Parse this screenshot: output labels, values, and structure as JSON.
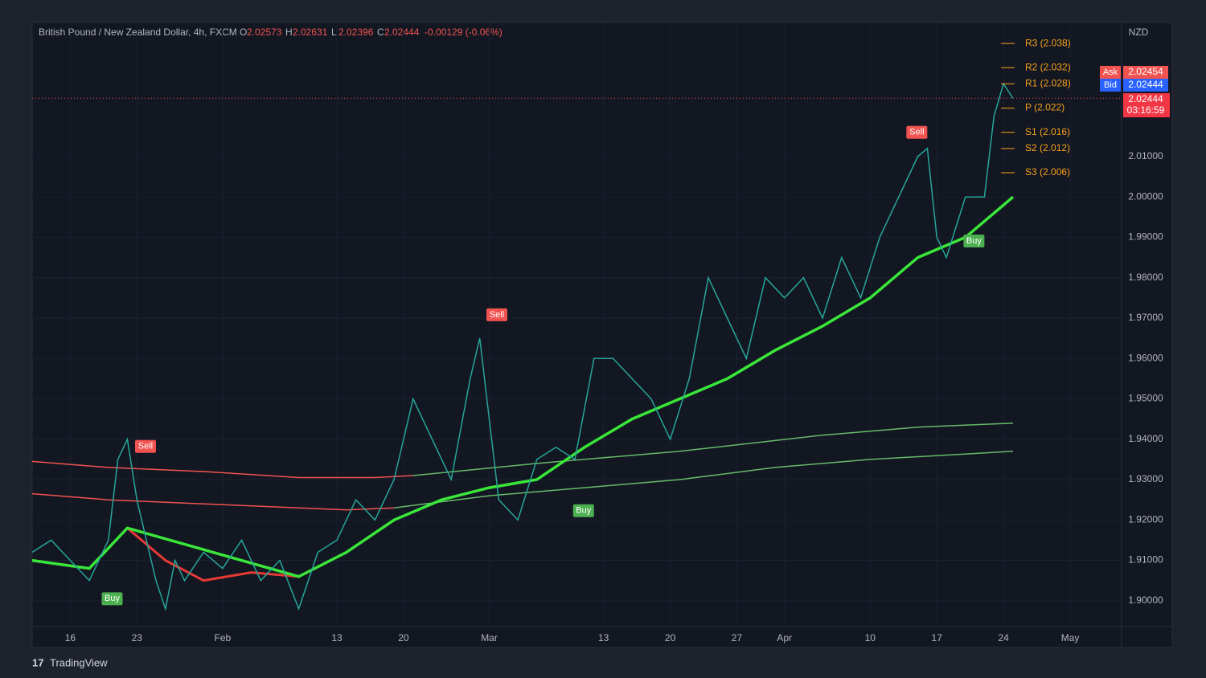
{
  "chart_data": {
    "type": "line",
    "title": "British Pound / New Zealand Dollar, 4h, FXCM",
    "ohlc": [
      {
        "label": "O",
        "value": 2.02573
      },
      {
        "label": "H",
        "value": 2.02631
      },
      {
        "label": "L",
        "value": 2.02396
      },
      {
        "label": "C",
        "value": 2.02444
      }
    ],
    "change": "-0.00129 (-0.06%)",
    "currency": "NZD",
    "ask": {
      "label": "Ask",
      "value": 2.02454
    },
    "bid": {
      "label": "Bid",
      "value": 2.02444
    },
    "last": {
      "value": 2.02444,
      "countdown": "03:16:59"
    },
    "brand": "TradingView",
    "xlim": [
      12,
      126.4
    ],
    "ylim": [
      1.8936,
      2.0432
    ],
    "xticks": [
      {
        "value": 16,
        "label": "16"
      },
      {
        "value": 23,
        "label": "23"
      },
      {
        "value": 32,
        "label": "Feb"
      },
      {
        "value": 44,
        "label": "13"
      },
      {
        "value": 51,
        "label": "20"
      },
      {
        "value": 60,
        "label": "Mar"
      },
      {
        "value": 72,
        "label": "13"
      },
      {
        "value": 79,
        "label": "20"
      },
      {
        "value": 86,
        "label": "27"
      },
      {
        "value": 91,
        "label": "Apr"
      },
      {
        "value": 100,
        "label": "10"
      },
      {
        "value": 107,
        "label": "17"
      },
      {
        "value": 114,
        "label": "24"
      },
      {
        "value": 121,
        "label": "May"
      }
    ],
    "yticks": [
      {
        "value": 1.9,
        "label": "1.90000"
      },
      {
        "value": 1.91,
        "label": "1.91000"
      },
      {
        "value": 1.92,
        "label": "1.92000"
      },
      {
        "value": 1.93,
        "label": "1.93000"
      },
      {
        "value": 1.94,
        "label": "1.94000"
      },
      {
        "value": 1.95,
        "label": "1.95000"
      },
      {
        "value": 1.96,
        "label": "1.96000"
      },
      {
        "value": 1.97,
        "label": "1.97000"
      },
      {
        "value": 1.98,
        "label": "1.98000"
      },
      {
        "value": 1.99,
        "label": "1.99000"
      },
      {
        "value": 2.0,
        "label": "2.00000"
      },
      {
        "value": 2.01,
        "label": "2.01000"
      }
    ],
    "series": [
      {
        "color": "#26a69a",
        "x": [
          12,
          14,
          16,
          18,
          20,
          21,
          22,
          23,
          24,
          25,
          26,
          27,
          28,
          30,
          32,
          34,
          36,
          38,
          40,
          42,
          44,
          46,
          48,
          50,
          52,
          54,
          56,
          58,
          59,
          60,
          61,
          63,
          65,
          67,
          69,
          71,
          73,
          75,
          77,
          79,
          81,
          83,
          85,
          87,
          89,
          91,
          93,
          95,
          97,
          99,
          101,
          103,
          105,
          106,
          107,
          108,
          110,
          112,
          113,
          114,
          115
        ],
        "values": [
          1.912,
          1.915,
          1.91,
          1.905,
          1.915,
          1.935,
          1.94,
          1.925,
          1.915,
          1.905,
          1.898,
          1.91,
          1.905,
          1.912,
          1.908,
          1.915,
          1.905,
          1.91,
          1.898,
          1.912,
          1.915,
          1.925,
          1.92,
          1.93,
          1.95,
          1.94,
          1.93,
          1.955,
          1.965,
          1.945,
          1.925,
          1.92,
          1.935,
          1.938,
          1.935,
          1.96,
          1.96,
          1.955,
          1.95,
          1.94,
          1.955,
          1.98,
          1.97,
          1.96,
          1.98,
          1.975,
          1.98,
          1.97,
          1.985,
          1.975,
          1.99,
          2.0,
          2.01,
          2.012,
          1.99,
          1.985,
          2.0,
          2.0,
          2.02,
          2.028,
          2.0244
        ]
      }
    ],
    "lines": [
      {
        "color": "#f05350",
        "width": 1.5,
        "x": [
          12,
          20,
          30,
          40,
          48,
          52
        ],
        "values": [
          1.9345,
          1.933,
          1.932,
          1.9305,
          1.9305,
          1.931
        ]
      },
      {
        "color": "#66bb6a",
        "width": 1.5,
        "x": [
          52,
          65,
          80,
          95,
          105,
          115
        ],
        "values": [
          1.931,
          1.934,
          1.937,
          1.941,
          1.943,
          1.944
        ]
      },
      {
        "color": "#f05350",
        "width": 1.5,
        "x": [
          12,
          20,
          30,
          40,
          45,
          50
        ],
        "values": [
          1.9265,
          1.925,
          1.924,
          1.923,
          1.9225,
          1.923
        ]
      },
      {
        "color": "#66bb6a",
        "width": 1.5,
        "x": [
          50,
          60,
          70,
          80,
          90,
          100,
          115
        ],
        "values": [
          1.923,
          1.926,
          1.928,
          1.93,
          1.933,
          1.935,
          1.937
        ]
      },
      {
        "color": "#e53935",
        "width": 3,
        "x": [
          22,
          26,
          30,
          35,
          40
        ],
        "values": [
          1.918,
          1.91,
          1.905,
          1.907,
          1.906
        ]
      },
      {
        "color": "#39e639",
        "width": 3.5,
        "x": [
          12,
          18,
          22,
          40,
          45,
          50,
          55,
          60,
          65,
          70,
          75,
          80,
          85,
          90,
          95,
          100,
          105,
          110,
          115
        ],
        "values": [
          1.91,
          1.908,
          1.918,
          1.906,
          1.912,
          1.92,
          1.925,
          1.928,
          1.93,
          1.938,
          1.945,
          1.95,
          1.955,
          1.962,
          1.968,
          1.975,
          1.985,
          1.99,
          2.0
        ]
      }
    ],
    "pivots": [
      {
        "label": "R3 (2.038)",
        "value": 2.038
      },
      {
        "label": "R2 (2.032)",
        "value": 2.032
      },
      {
        "label": "R1 (2.028)",
        "value": 2.028
      },
      {
        "label": "P (2.022)",
        "value": 2.022
      },
      {
        "label": "S1 (2.016)",
        "value": 2.016
      },
      {
        "label": "S2 (2.012)",
        "value": 2.012
      },
      {
        "label": "S3 (2.006)",
        "value": 2.006
      }
    ],
    "signals": [
      {
        "label": "Sell",
        "x": 23.9,
        "value": 1.9382
      },
      {
        "label": "Sell",
        "x": 60.8,
        "value": 1.9708
      },
      {
        "label": "Sell",
        "x": 104.9,
        "value": 2.016
      },
      {
        "label": "Buy",
        "x": 20.4,
        "value": 1.9005
      },
      {
        "label": "Buy",
        "x": 69.9,
        "value": 1.9223
      },
      {
        "label": "Buy",
        "x": 110.9,
        "value": 1.9891
      }
    ]
  }
}
